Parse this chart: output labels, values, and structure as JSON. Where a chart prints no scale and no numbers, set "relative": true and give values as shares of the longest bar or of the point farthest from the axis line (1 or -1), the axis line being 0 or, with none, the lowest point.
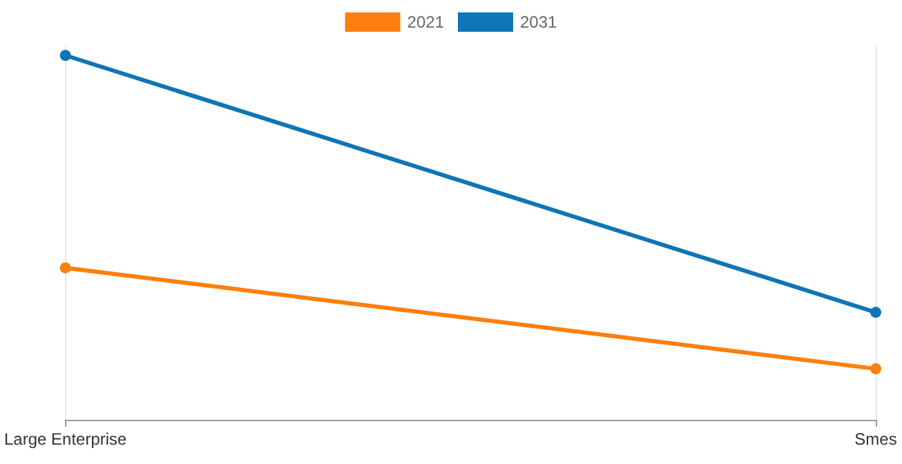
{
  "chart_data": {
    "type": "line",
    "relative": true,
    "categories": [
      "Large Enterprise",
      "Smes"
    ],
    "series": [
      {
        "name": "2021",
        "color": "#fd7f0e",
        "values": [
          0.417,
          0.14
        ]
      },
      {
        "name": "2031",
        "color": "#0e75b8",
        "values": [
          1,
          0.295
        ]
      }
    ],
    "grid": "x",
    "legend": "top",
    "marker": "circle",
    "line_style": "solid"
  }
}
